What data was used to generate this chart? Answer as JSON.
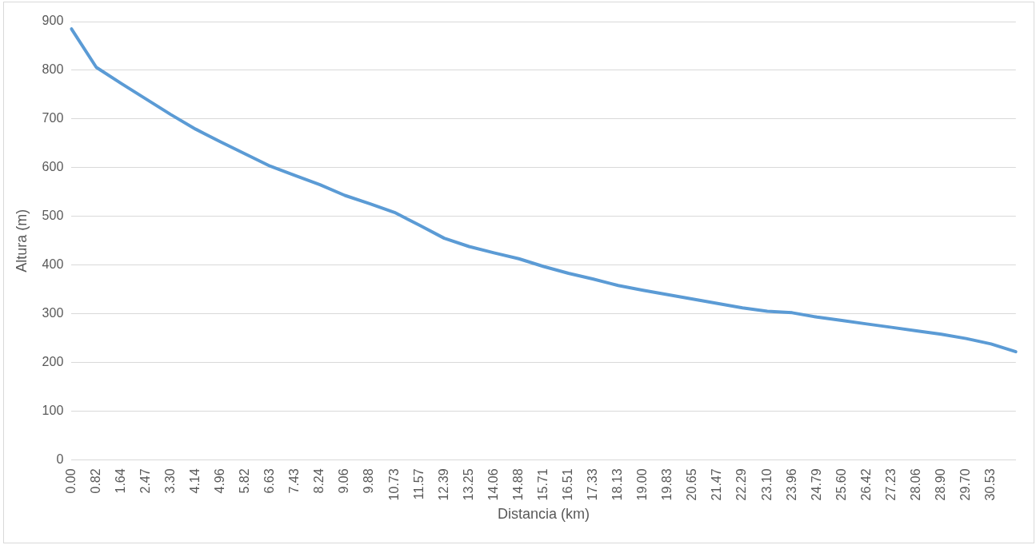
{
  "chart_data": {
    "type": "line",
    "xlabel": "Distancia (km)",
    "ylabel": "Altura (m)",
    "categories": [
      "0.00",
      "0.82",
      "1.64",
      "2.47",
      "3.30",
      "4.14",
      "4.96",
      "5.82",
      "6.63",
      "7.43",
      "8.24",
      "9.06",
      "9.88",
      "10.73",
      "11.57",
      "12.39",
      "13.25",
      "14.06",
      "14.88",
      "15.71",
      "16.51",
      "17.33",
      "18.13",
      "19.00",
      "19.83",
      "20.65",
      "21.47",
      "22.29",
      "23.10",
      "23.96",
      "24.79",
      "25.60",
      "26.42",
      "27.23",
      "28.06",
      "28.90",
      "29.70",
      "30.53",
      null
    ],
    "series": [
      {
        "color": "#5b9bd5",
        "values": [
          885,
          806,
          773,
          741,
          709,
          679,
          653,
          628,
          603,
          584,
          565,
          543,
          526,
          508,
          482,
          455,
          438,
          425,
          413,
          397,
          383,
          371,
          358,
          348,
          339,
          330,
          321,
          312,
          305,
          302,
          293,
          286,
          279,
          272,
          265,
          258,
          249,
          238,
          222
        ]
      }
    ],
    "ylim": [
      0,
      900
    ],
    "yticks": [
      0,
      100,
      200,
      300,
      400,
      500,
      600,
      700,
      800,
      900
    ],
    "grid": "y",
    "legend": false,
    "marker": "none",
    "line_style": "solid"
  }
}
